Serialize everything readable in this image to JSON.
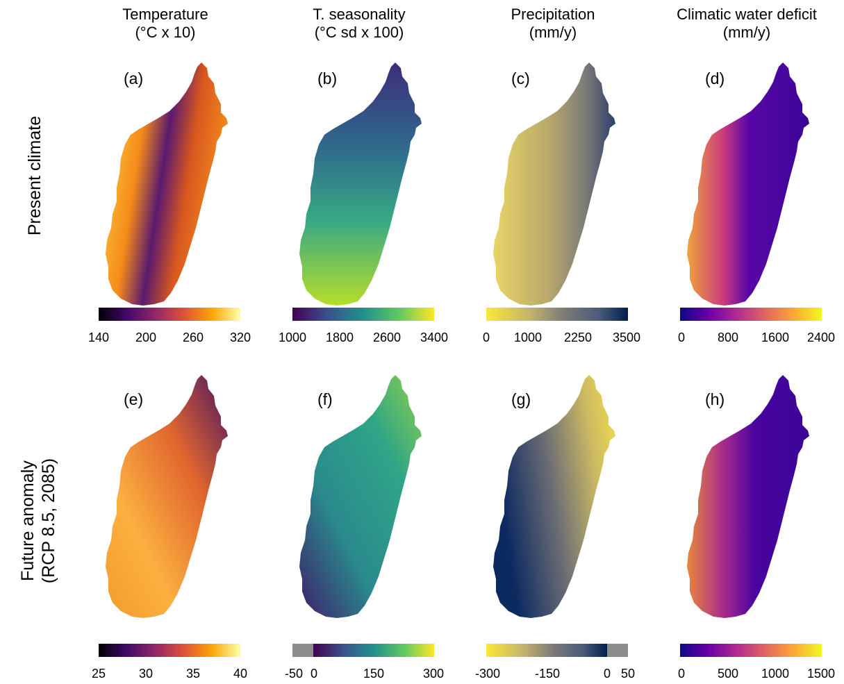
{
  "columns": [
    {
      "title_line1": "Temperature",
      "title_line2": "(°C x 10)"
    },
    {
      "title_line1": "T. seasonality",
      "title_line2": "(°C sd x 100)"
    },
    {
      "title_line1": "Precipitation",
      "title_line2": "(mm/y)"
    },
    {
      "title_line1": "Climatic water deficit",
      "title_line2": "(mm/y)"
    }
  ],
  "rows": [
    {
      "title_line1": "Present climate",
      "title_line2": ""
    },
    {
      "title_line1": "Future anomaly",
      "title_line2": "(RCP 8.5, 2085)"
    }
  ],
  "panels": [
    {
      "letter": "(a)",
      "colormap": "inferno",
      "ticks": [
        "140",
        "200",
        "260",
        "320"
      ]
    },
    {
      "letter": "(b)",
      "colormap": "viridis",
      "ticks": [
        "1000",
        "1800",
        "2600",
        "3400"
      ]
    },
    {
      "letter": "(c)",
      "colormap": "cividis-reversed",
      "ticks": [
        "0",
        "1000",
        "2250",
        "3500"
      ]
    },
    {
      "letter": "(d)",
      "colormap": "plasma",
      "ticks": [
        "0",
        "800",
        "1600",
        "2400"
      ]
    },
    {
      "letter": "(e)",
      "colormap": "inferno",
      "ticks": [
        "25",
        "30",
        "35",
        "40"
      ]
    },
    {
      "letter": "(f)",
      "colormap": "viridis",
      "ticks": [
        "-50",
        "0",
        "150",
        "300"
      ]
    },
    {
      "letter": "(g)",
      "colormap": "cividis-reversed",
      "ticks": [
        "-300",
        "-150",
        "0",
        "50"
      ]
    },
    {
      "letter": "(h)",
      "colormap": "plasma",
      "ticks": [
        "0",
        "500",
        "1000",
        "1500"
      ]
    }
  ],
  "colors": {
    "inferno": [
      "#000004",
      "#420a68",
      "#932667",
      "#dd513a",
      "#fca50a",
      "#fcffa4"
    ],
    "viridis": [
      "#440154",
      "#3b528b",
      "#21918c",
      "#5ec962",
      "#fde725"
    ],
    "cividis_reversed": [
      "#fde737",
      "#c4b56c",
      "#7c7b78",
      "#4a5a7a",
      "#00204d"
    ],
    "plasma": [
      "#0d0887",
      "#6a00a8",
      "#b12a90",
      "#e16462",
      "#fca636",
      "#f0f921"
    ],
    "out_of_range_gray": "#8c8c8c"
  }
}
